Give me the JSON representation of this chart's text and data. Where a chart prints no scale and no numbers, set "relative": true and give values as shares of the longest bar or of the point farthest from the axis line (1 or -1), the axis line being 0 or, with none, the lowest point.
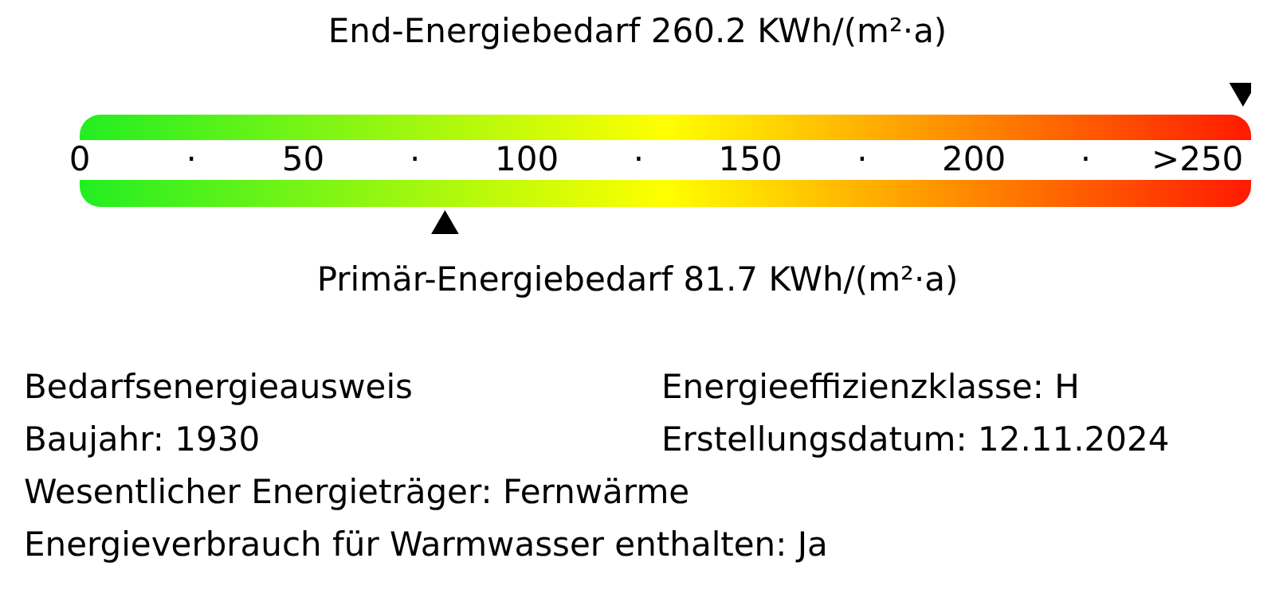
{
  "chart_data": {
    "type": "scatter",
    "relative": true,
    "marker": "triangle",
    "xlim": [
      0,
      262
    ],
    "xticks": [
      0,
      {
        "value": 25,
        "label": "·"
      },
      50,
      {
        "value": 75,
        "label": "·"
      },
      100,
      {
        "value": 125,
        "label": "·"
      },
      150,
      {
        "value": 175,
        "label": "·"
      },
      200,
      {
        "value": 225,
        "label": "·"
      },
      {
        "value": 250,
        "label": ">250"
      }
    ],
    "x": [
      260.2,
      81.7
    ],
    "values": [
      1,
      0
    ],
    "color": "#000000",
    "annotations": [
      "End-Energiebedarf 260.2 KWh/(m²·a)",
      "Primär-Energiebedarf 81.7 KWh/(m²·a)",
      "Bedarfsenergieausweis",
      "Energieeffizienzklasse: H",
      "Baujahr: 1930",
      "Erstellungsdatum: 12.11.2024",
      "Wesentlicher Energieträger: Fernwärme",
      "Energieverbrauch für Warmwasser enthalten: Ja"
    ]
  }
}
